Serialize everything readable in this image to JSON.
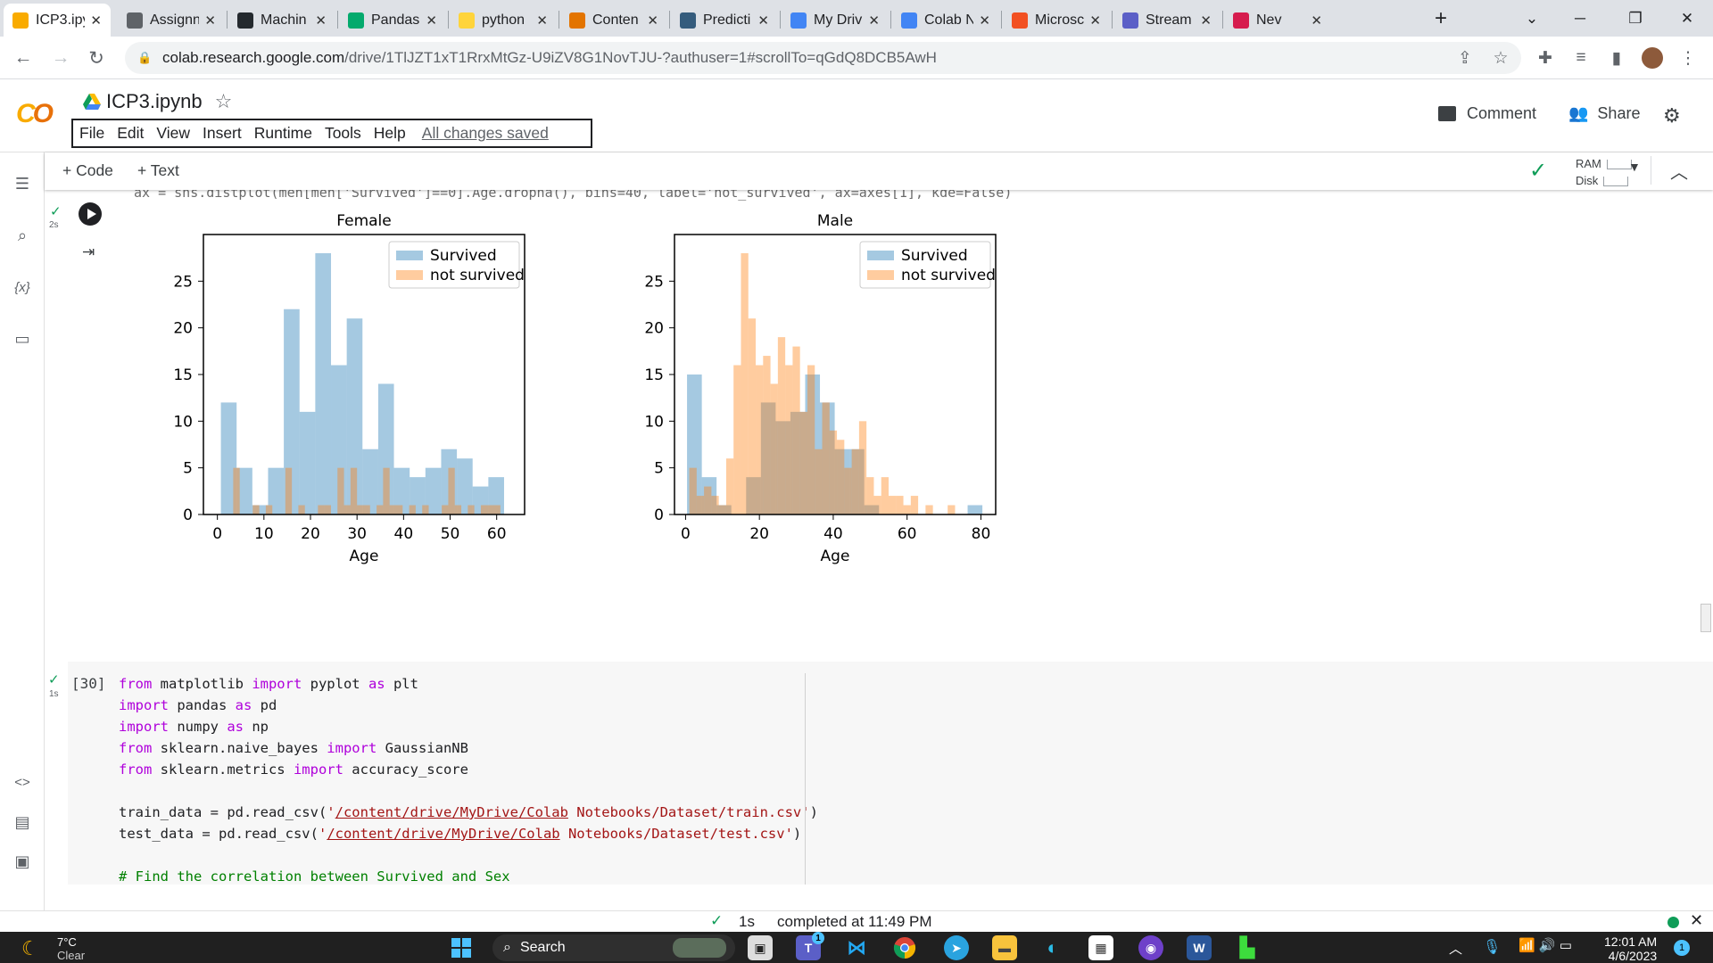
{
  "browser": {
    "tabs": [
      {
        "label": "ICP3.ipy",
        "icon": "colab-icon",
        "active": true
      },
      {
        "label": "Assignn",
        "icon": "assignment-icon"
      },
      {
        "label": "Machin",
        "icon": "github-icon"
      },
      {
        "label": "Pandas",
        "icon": "w3schools-icon"
      },
      {
        "label": "python",
        "icon": "python-icon"
      },
      {
        "label": "Conten",
        "icon": "content-icon"
      },
      {
        "label": "Predicti",
        "icon": "tds-icon"
      },
      {
        "label": "My Driv",
        "icon": "drive-icon"
      },
      {
        "label": "Colab N",
        "icon": "drive-icon"
      },
      {
        "label": "Microsc",
        "icon": "microsoft-icon"
      },
      {
        "label": "Stream",
        "icon": "stream-icon"
      },
      {
        "label": "Nev",
        "icon": "record-icon"
      }
    ],
    "new_tab": "+",
    "url_host": "colab.research.google.com",
    "url_path": "/drive/1TlJZT1xT1RrxMtGz-U9iZV8G1NovTJU-?authuser=1#scrollTo=qGdQ8DCB5AwH"
  },
  "colab": {
    "logo": "CO",
    "notebook_title": "ICP3.ipynb",
    "menu": [
      "File",
      "Edit",
      "View",
      "Insert",
      "Runtime",
      "Tools",
      "Help"
    ],
    "saved_status": "All changes saved",
    "comment_label": "Comment",
    "share_label": "Share",
    "add_code": "+ Code",
    "add_text": "+ Text",
    "ram_label": "RAM",
    "disk_label": "Disk"
  },
  "cell1": {
    "time": "2s",
    "clipped_code": "ax = sns.distplot(men[men['Survived']==0].Age.dropna(), bins=40, label='not_survived', ax=axes[1], kde=False)"
  },
  "chart_data": [
    {
      "type": "bar",
      "title": "Female",
      "xlabel": "Age",
      "ylabel": "",
      "xlim": [
        -3,
        66
      ],
      "ylim": [
        0,
        30
      ],
      "xticks": [
        0,
        10,
        20,
        30,
        40,
        50,
        60
      ],
      "yticks": [
        0,
        5,
        10,
        15,
        20,
        25
      ],
      "legend": "top-right",
      "series": [
        {
          "name": "Survived",
          "color": "#1f77b4",
          "bin_start": 0.75,
          "bin_width": 3.38,
          "values": [
            12,
            5,
            1,
            5,
            22,
            11,
            28,
            16,
            21,
            7,
            14,
            5,
            4,
            5,
            7,
            6,
            3,
            4
          ]
        },
        {
          "name": "not survived",
          "color": "#ff7f0e",
          "bin_start": 2.0,
          "bin_width": 1.4,
          "values": [
            0,
            5,
            0,
            0,
            1,
            0,
            1,
            0,
            0,
            5,
            0,
            1,
            0,
            0,
            1,
            1,
            0,
            5,
            1,
            5,
            1,
            1,
            0,
            1,
            5,
            1,
            1,
            0,
            1,
            0,
            1,
            0,
            0,
            1,
            5,
            1,
            0,
            1,
            0,
            1,
            1,
            1,
            0
          ]
        }
      ]
    },
    {
      "type": "bar",
      "title": "Male",
      "xlabel": "Age",
      "ylabel": "",
      "xlim": [
        -3,
        84
      ],
      "ylim": [
        0,
        30
      ],
      "xticks": [
        0,
        20,
        40,
        60,
        80
      ],
      "yticks": [
        0,
        5,
        10,
        15,
        20,
        25
      ],
      "legend": "top-right",
      "series": [
        {
          "name": "Survived",
          "color": "#1f77b4",
          "bin_start": 0.4,
          "bin_width": 4.0,
          "values": [
            15,
            4,
            1,
            0,
            4,
            12,
            10,
            11,
            15,
            12,
            7,
            7,
            1,
            0,
            0,
            0,
            0,
            0,
            0,
            1
          ]
        },
        {
          "name": "not survived",
          "color": "#ff7f0e",
          "bin_start": 1.0,
          "bin_width": 2.0,
          "values": [
            5,
            2,
            3,
            2,
            1,
            6,
            16,
            28,
            21,
            16,
            17,
            14,
            19,
            16,
            18,
            11,
            16,
            7,
            12,
            9,
            8,
            5,
            7,
            10,
            4,
            2,
            4,
            2,
            2,
            1,
            2,
            0,
            1,
            0,
            0,
            1
          ]
        }
      ]
    }
  ],
  "cell2": {
    "exec_count": "[30]",
    "time": "1s",
    "lines": [
      "from matplotlib import pyplot as plt",
      "import pandas as pd",
      "import numpy as np",
      "from sklearn.naive_bayes import GaussianNB",
      "from sklearn.metrics import accuracy_score",
      "",
      "train_data = pd.read_csv('/content/drive/MyDrive/Colab Notebooks/Dataset/train.csv')",
      "test_data = pd.read_csv('/content/drive/MyDrive/Colab Notebooks/Dataset/test.csv')",
      "",
      "# Find the correlation between Survived and Sex"
    ]
  },
  "status": {
    "duration": "1s",
    "completed": "completed at 11:49 PM"
  },
  "taskbar": {
    "weather_temp": "7°C",
    "weather_desc": "Clear",
    "search_label": "Search",
    "time": "12:01 AM",
    "date": "4/6/2023",
    "notif_count": "1",
    "teams_badge": "1"
  }
}
